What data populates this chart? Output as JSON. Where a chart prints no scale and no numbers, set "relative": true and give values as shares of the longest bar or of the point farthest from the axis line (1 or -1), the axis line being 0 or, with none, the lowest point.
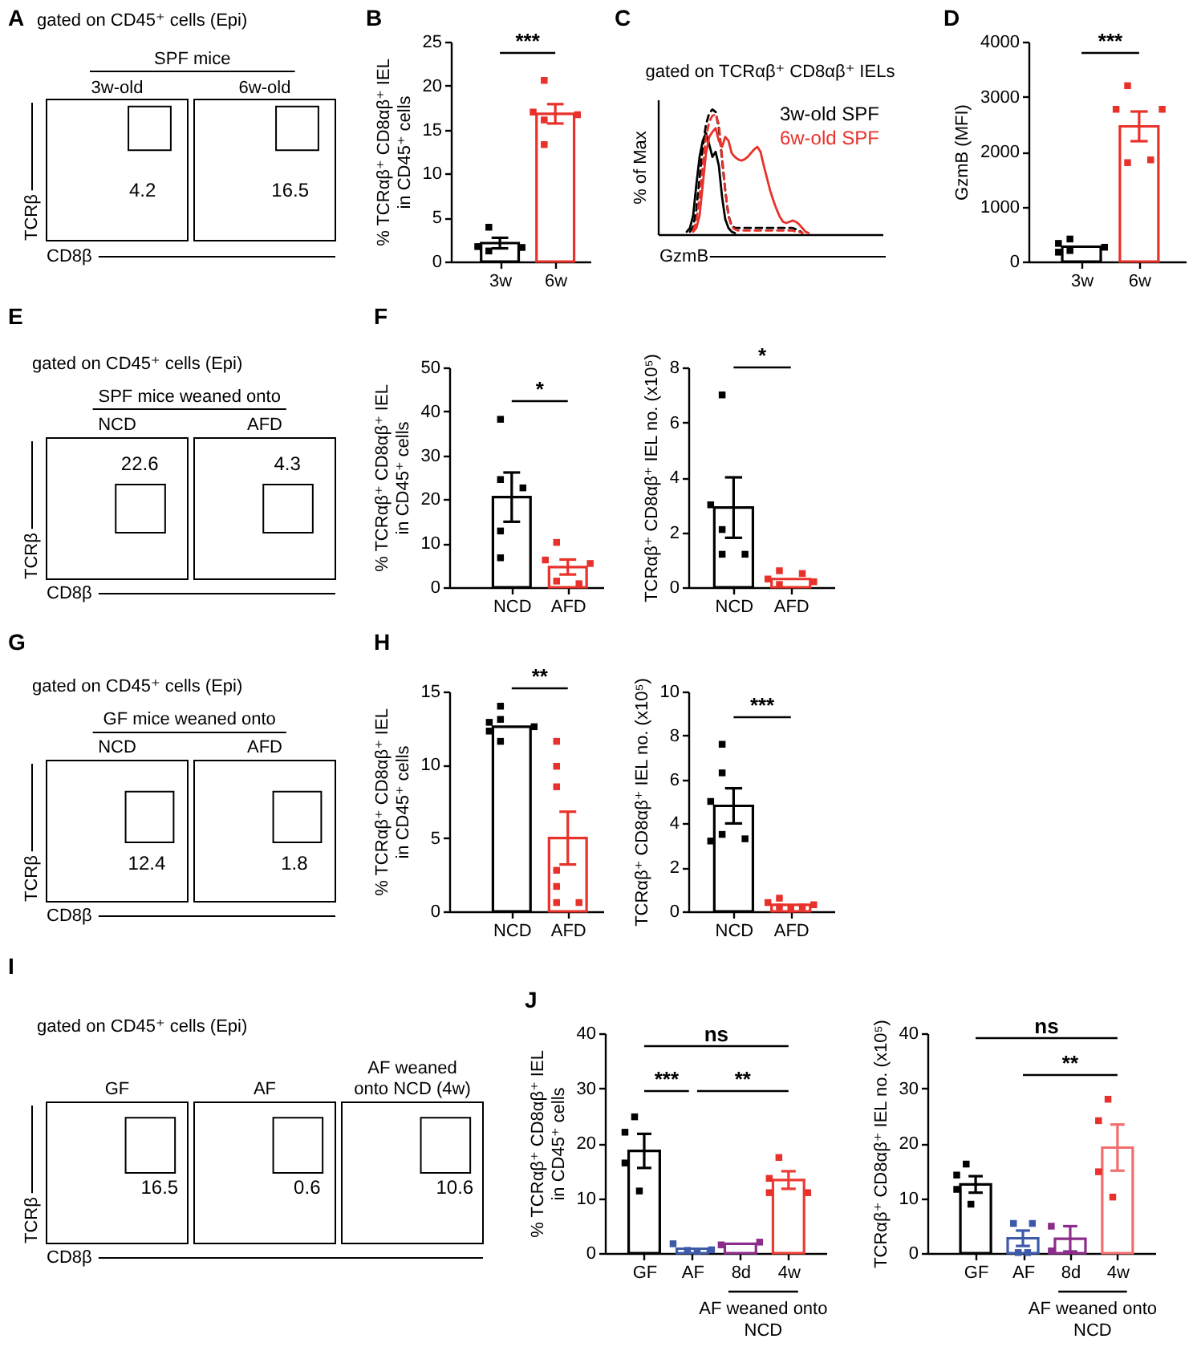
{
  "chart_data": [
    {
      "type": "other",
      "title": "A",
      "subtitle": "gated on CD45⁺ cells (Epi)",
      "annotations": [
        "SPF mice"
      ],
      "categories": [
        "3w-old",
        "6w-old"
      ],
      "values": [
        4.2,
        16.5
      ],
      "data_labels": true,
      "xlabel": "CD8β",
      "ylabel": "TCRβ"
    },
    {
      "type": "bar",
      "title": "B",
      "ylabel": "% TCRαβ⁺ CD8αβ⁺ IEL in CD45⁺ cells",
      "categories": [
        "3w",
        "6w"
      ],
      "ylim": [
        0,
        25
      ],
      "yticks": [
        0,
        5,
        10,
        15,
        20,
        25
      ],
      "marker": "square",
      "annotations": [
        "***"
      ],
      "series": [
        {
          "type": "bar",
          "values": [
            2.1,
            16.8
          ],
          "errors": [
            0.6,
            1.1
          ],
          "colors": [
            "#000000",
            "#e8312a"
          ]
        },
        {
          "type": "scatter",
          "x": [
            "3w",
            "3w",
            "3w",
            "3w"
          ],
          "values": [
            3.9,
            1.7,
            1.6,
            1.2
          ],
          "color": "#000000"
        },
        {
          "type": "scatter",
          "x": [
            "6w",
            "6w",
            "6w",
            "6w",
            "6w"
          ],
          "values": [
            20.6,
            17.0,
            16.7,
            16.1,
            13.3
          ],
          "color": "#e8312a"
        }
      ]
    },
    {
      "type": "line",
      "title": "C",
      "subtitle": "gated on TCRαβ⁺ CD8αβ⁺ IELs",
      "xlabel": "GzmB",
      "ylabel": "% of Max",
      "relative": true,
      "legend": "top right",
      "categories": [
        null,
        null,
        null,
        null,
        null,
        null,
        null,
        null,
        null,
        null,
        null,
        null,
        null,
        null,
        null,
        null,
        null,
        null,
        null,
        null,
        null,
        null,
        null,
        null,
        null,
        null,
        null,
        null,
        null,
        null,
        null,
        null,
        null,
        null,
        null,
        null,
        null,
        null,
        null,
        null,
        null,
        null,
        null,
        null,
        null,
        null,
        null,
        null,
        null,
        null,
        null,
        null,
        null,
        null,
        null,
        null,
        null,
        null,
        null,
        null,
        null,
        null,
        null,
        null,
        null,
        null,
        null,
        null,
        null,
        null,
        null
      ],
      "series": [
        {
          "name": "3w-old SPF",
          "color": "#000000",
          "values": [
            null,
            null,
            null,
            null,
            null,
            null,
            null,
            null,
            null,
            0.02,
            0.05,
            0.15,
            0.4,
            0.62,
            0.75,
            0.81,
            0.72,
            0.62,
            0.66,
            0.55,
            0.3,
            0.12,
            0.05,
            0.02,
            0.01,
            null,
            null,
            null,
            null,
            null,
            null,
            null,
            null,
            null,
            null,
            null,
            null,
            null,
            null,
            null,
            null,
            null,
            null,
            null,
            null,
            null,
            null,
            null,
            null,
            null,
            null,
            null,
            null,
            null,
            null,
            null,
            null,
            null,
            null,
            null,
            null,
            null,
            null,
            null,
            null,
            null,
            null,
            null,
            null,
            null,
            null
          ]
        },
        {
          "color": "#000000",
          "line_style": "dashed",
          "values": [
            null,
            null,
            null,
            null,
            null,
            null,
            null,
            null,
            null,
            null,
            0.02,
            0.06,
            0.2,
            0.45,
            0.7,
            0.88,
            0.97,
            1,
            0.98,
            0.85,
            0.6,
            0.35,
            0.15,
            0.07,
            0.05,
            0.05,
            0.05,
            0.05,
            0.05,
            0.05,
            0.05,
            0.05,
            0.05,
            0.05,
            0.05,
            0.05,
            0.05,
            0.05,
            0.05,
            0.05,
            0.05,
            0.05,
            0.05,
            0.04,
            0.03,
            0.01,
            null,
            null,
            null,
            null,
            null,
            null,
            null,
            null,
            null,
            null,
            null,
            null,
            null,
            null,
            null,
            null,
            null,
            null,
            null,
            null,
            null,
            null,
            null,
            null,
            null
          ]
        },
        {
          "name": "6w-old SPF",
          "color": "#e8312a",
          "values": [
            null,
            null,
            null,
            null,
            null,
            null,
            null,
            null,
            null,
            null,
            null,
            0.02,
            0.05,
            0.15,
            0.4,
            0.65,
            0.78,
            0.82,
            0.85,
            0.75,
            0.7,
            0.78,
            0.75,
            0.65,
            0.62,
            0.6,
            0.59,
            0.6,
            0.62,
            0.65,
            0.68,
            0.7,
            0.66,
            0.55,
            0.45,
            0.35,
            0.27,
            0.2,
            0.14,
            0.1,
            0.09,
            0.1,
            0.11,
            0.1,
            0.08,
            0.05,
            0.02,
            0.01,
            null,
            null,
            null,
            null,
            null,
            null,
            null,
            null,
            null,
            null,
            null,
            null,
            null,
            null,
            null,
            null,
            null,
            null,
            null,
            null,
            null,
            null,
            null
          ]
        },
        {
          "color": "#e8312a",
          "line_style": "dashed",
          "values": [
            null,
            null,
            null,
            null,
            null,
            null,
            null,
            null,
            null,
            null,
            null,
            0.03,
            0.1,
            0.3,
            0.55,
            0.78,
            0.9,
            0.95,
            0.96,
            0.88,
            0.62,
            0.35,
            0.15,
            0.06,
            0.04,
            0.03,
            0.03,
            0.03,
            0.03,
            0.03,
            0.03,
            0.03,
            0.03,
            0.03,
            0.03,
            0.03,
            0.03,
            0.03,
            0.03,
            0.03,
            0.03,
            0.03,
            0.03,
            0.02,
            0.02,
            0.01,
            null,
            null,
            null,
            null,
            null,
            null,
            null,
            null,
            null,
            null,
            null,
            null,
            null,
            null,
            null,
            null,
            null,
            null,
            null,
            null,
            null,
            null,
            null,
            null,
            null
          ]
        }
      ]
    },
    {
      "type": "bar",
      "title": "D",
      "ylabel": "GzmB (MFI)",
      "categories": [
        "3w",
        "6w"
      ],
      "ylim": [
        0,
        4000
      ],
      "yticks": [
        0,
        1000,
        2000,
        3000,
        4000
      ],
      "marker": "square",
      "annotations": [
        "***"
      ],
      "series": [
        {
          "type": "bar",
          "values": [
            270,
            2460
          ],
          "errors": [
            null,
            270
          ],
          "colors": [
            "#000000",
            "#e8312a"
          ]
        },
        {
          "type": "scatter",
          "x": [
            "3w",
            "3w",
            "3w",
            "3w",
            "3w"
          ],
          "values": [
            410,
            330,
            260,
            200,
            170
          ],
          "color": "#000000"
        },
        {
          "type": "scatter",
          "x": [
            "6w",
            "6w",
            "6w",
            "6w",
            "6w"
          ],
          "values": [
            3200,
            2770,
            2770,
            1800,
            1850
          ],
          "color": "#e8312a"
        }
      ]
    },
    {
      "type": "other",
      "title": "E",
      "subtitle": "gated on CD45⁺ cells (Epi)",
      "annotations": [
        "SPF mice weaned onto"
      ],
      "categories": [
        "NCD",
        "AFD"
      ],
      "values": [
        22.6,
        4.3
      ],
      "data_labels": true,
      "xlabel": "CD8β",
      "ylabel": "TCRβ"
    },
    {
      "type": "bar",
      "title": "F",
      "ylabel": "% TCRαβ⁺ CD8αβ⁺ IEL in CD45⁺ cells",
      "categories": [
        "NCD",
        "AFD"
      ],
      "ylim": [
        0,
        50
      ],
      "yticks": [
        0,
        10,
        20,
        30,
        40,
        50
      ],
      "marker": "square",
      "annotations": [
        "*"
      ],
      "series": [
        {
          "type": "bar",
          "values": [
            20.5,
            4.6
          ],
          "errors": [
            5.6,
            1.7
          ],
          "colors": [
            "#000000",
            "#e8312a"
          ]
        },
        {
          "type": "scatter",
          "x": [
            "NCD",
            "NCD",
            "NCD",
            "NCD",
            "NCD"
          ],
          "values": [
            38.2,
            24.5,
            22.6,
            12.8,
            6.7
          ],
          "color": "#000000"
        },
        {
          "type": "scatter",
          "x": [
            "AFD",
            "AFD",
            "AFD",
            "AFD",
            "AFD"
          ],
          "values": [
            10.2,
            6.2,
            5.4,
            1.4,
            0.8
          ],
          "color": "#e8312a"
        }
      ]
    },
    {
      "type": "bar",
      "ylabel": "TCRαβ⁺ CD8αβ⁺ IEL no. (x10⁵)",
      "categories": [
        "NCD",
        "AFD"
      ],
      "ylim": [
        0,
        8
      ],
      "yticks": [
        0,
        2,
        4,
        6,
        8
      ],
      "marker": "square",
      "annotations": [
        "*"
      ],
      "series": [
        {
          "type": "bar",
          "values": [
            2.9,
            0.3
          ],
          "errors": [
            1.1,
            null
          ],
          "colors": [
            "#000000",
            "#e8312a"
          ]
        },
        {
          "type": "scatter",
          "x": [
            "NCD",
            "NCD",
            "NCD",
            "NCD",
            "NCD"
          ],
          "values": [
            7.0,
            3.0,
            2.1,
            1.2,
            1.2
          ],
          "color": "#000000"
        },
        {
          "type": "scatter",
          "x": [
            "AFD",
            "AFD",
            "AFD",
            "AFD",
            "AFD"
          ],
          "values": [
            0.6,
            0.5,
            0.3,
            0.2,
            0.1
          ],
          "color": "#e8312a"
        }
      ]
    },
    {
      "type": "other",
      "title": "G",
      "subtitle": "gated on CD45⁺ cells (Epi)",
      "annotations": [
        "GF mice weaned onto"
      ],
      "categories": [
        "NCD",
        "AFD"
      ],
      "values": [
        12.4,
        1.8
      ],
      "data_labels": true,
      "xlabel": "CD8β",
      "ylabel": "TCRβ"
    },
    {
      "type": "bar",
      "title": "H",
      "ylabel": "% TCRαβ⁺ CD8αβ⁺ IEL in CD45⁺ cells",
      "categories": [
        "NCD",
        "AFD"
      ],
      "ylim": [
        0,
        15
      ],
      "yticks": [
        0,
        5,
        10,
        15
      ],
      "marker": "square",
      "annotations": [
        "**"
      ],
      "series": [
        {
          "type": "bar",
          "values": [
            12.6,
            5.0
          ],
          "errors": [
            null,
            1.8
          ],
          "colors": [
            "#000000",
            "#e8312a"
          ]
        },
        {
          "type": "scatter",
          "x": [
            "NCD",
            "NCD",
            "NCD",
            "NCD",
            "NCD",
            "NCD"
          ],
          "values": [
            14.0,
            13.1,
            12.9,
            12.6,
            12.3,
            11.6
          ],
          "color": "#000000"
        },
        {
          "type": "scatter",
          "x": [
            "AFD",
            "AFD",
            "AFD",
            "AFD",
            "AFD",
            "AFD",
            "AFD"
          ],
          "values": [
            11.6,
            9.9,
            8.5,
            2.8,
            1.7,
            0.6,
            0.6
          ],
          "color": "#e8312a"
        }
      ]
    },
    {
      "type": "bar",
      "ylabel": "TCRαβ⁺ CD8αβ⁺ IEL no. (x10⁵)",
      "categories": [
        "NCD",
        "AFD"
      ],
      "ylim": [
        0,
        10
      ],
      "yticks": [
        0,
        2,
        4,
        6,
        8,
        10
      ],
      "marker": "square",
      "annotations": [
        "***"
      ],
      "series": [
        {
          "type": "bar",
          "values": [
            4.8,
            0.3
          ],
          "errors": [
            0.8,
            null
          ],
          "colors": [
            "#000000",
            "#e8312a"
          ]
        },
        {
          "type": "scatter",
          "x": [
            "NCD",
            "NCD",
            "NCD",
            "NCD",
            "NCD",
            "NCD"
          ],
          "values": [
            7.6,
            6.3,
            5.0,
            3.5,
            3.3,
            3.2
          ],
          "color": "#000000"
        },
        {
          "type": "scatter",
          "x": [
            "AFD",
            "AFD",
            "AFD",
            "AFD",
            "AFD",
            "AFD"
          ],
          "values": [
            0.6,
            0.4,
            0.3,
            0.2,
            0.2,
            0.1
          ],
          "color": "#e8312a"
        }
      ]
    },
    {
      "type": "other",
      "title": "I",
      "subtitle": "gated on CD45⁺ cells (Epi)",
      "categories": [
        "GF",
        "AF",
        "AF weaned onto NCD (4w)"
      ],
      "values": [
        16.5,
        0.6,
        10.6
      ],
      "data_labels": true,
      "xlabel": "CD8β",
      "ylabel": "TCRβ"
    },
    {
      "type": "bar",
      "title": "J",
      "ylabel": "% TCRαβ⁺ CD8αβ⁺ IEL in CD45⁺ cells",
      "categories": [
        "GF",
        "AF",
        "8d",
        "4w"
      ],
      "ylim": [
        0,
        40
      ],
      "yticks": [
        0,
        10,
        20,
        30,
        40
      ],
      "marker": "square",
      "annotations": [
        "ns",
        "***",
        "**",
        "AF weaned onto NCD"
      ],
      "series": [
        {
          "type": "bar",
          "values": [
            18.6,
            0.8,
            1.7,
            13.3
          ],
          "errors": [
            3.1,
            null,
            null,
            1.6
          ],
          "colors": [
            "#000000",
            "#3d5aa9",
            "#8c2d8c",
            "#ec3b33"
          ]
        },
        {
          "type": "scatter",
          "x": [
            "GF",
            "GF",
            "GF",
            "GF"
          ],
          "values": [
            24.8,
            22.0,
            16.4,
            11.3
          ],
          "color": "#000000"
        },
        {
          "type": "scatter",
          "x": [
            "AF",
            "AF",
            "AF",
            "AF"
          ],
          "values": [
            1.7,
            0.6,
            0.5,
            0.4
          ],
          "color": "#3d5aa9"
        },
        {
          "type": "scatter",
          "x": [
            "8d",
            "8d"
          ],
          "values": [
            1.5,
            2.0
          ],
          "color": "#8c2d8c"
        },
        {
          "type": "scatter",
          "x": [
            "4w",
            "4w",
            "4w",
            "4w"
          ],
          "values": [
            17.4,
            13.6,
            11.0,
            11.0
          ],
          "color": "#e8312a"
        }
      ]
    },
    {
      "type": "bar",
      "ylabel": "TCRαβ⁺ CD8αβ⁺ IEL no. (x10⁵)",
      "categories": [
        "GF",
        "AF",
        "8d",
        "4w"
      ],
      "ylim": [
        0,
        40
      ],
      "yticks": [
        0,
        10,
        20,
        30,
        40
      ],
      "marker": "square",
      "annotations": [
        "ns",
        "**",
        "AF weaned onto NCD"
      ],
      "series": [
        {
          "type": "bar",
          "values": [
            12.5,
            2.7,
            2.6,
            19.2
          ],
          "errors": [
            1.5,
            1.4,
            2.3,
            4.2
          ],
          "colors": [
            "#000000",
            "#3d5aa9",
            "#8c2d8c",
            "#f26d6d"
          ]
        },
        {
          "type": "scatter",
          "x": [
            "GF",
            "GF",
            "GF",
            "GF"
          ],
          "values": [
            16.2,
            14.2,
            11.6,
            8.9
          ],
          "color": "#000000"
        },
        {
          "type": "scatter",
          "x": [
            "AF",
            "AF",
            "AF",
            "AF"
          ],
          "values": [
            5.4,
            5.4,
            0.1,
            0.1
          ],
          "color": "#3d5aa9"
        },
        {
          "type": "scatter",
          "x": [
            "8d",
            "8d"
          ],
          "values": [
            4.9,
            0.4
          ],
          "color": "#8c2d8c"
        },
        {
          "type": "scatter",
          "x": [
            "4w",
            "4w",
            "4w",
            "4w"
          ],
          "values": [
            28.0,
            24.1,
            14.8,
            10.2
          ],
          "color": "#e8312a"
        }
      ]
    }
  ]
}
